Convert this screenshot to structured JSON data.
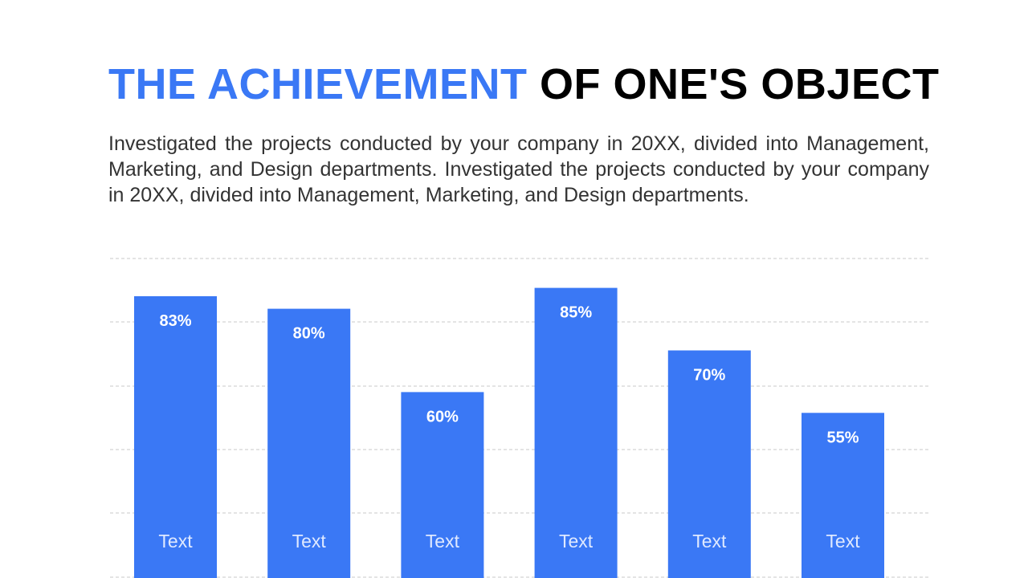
{
  "title": {
    "accent": "THE ACHIEVEMENT",
    "rest": "OF ONE'S OBJECT"
  },
  "description": "Investigated the projects conducted by your company in 20XX, divided into Management, Marketing, and Design departments. Investigated the projects conducted by your company in 20XX, divided into Management, Marketing, and Design departments.",
  "colors": {
    "accent": "#3a78f5",
    "bar": "#3a78f5",
    "gridline": "#c8c8c8",
    "title_rest": "#000000"
  },
  "chart_data": {
    "type": "bar",
    "categories": [
      "Text",
      "Text",
      "Text",
      "Text",
      "Text",
      "Text"
    ],
    "values": [
      83,
      80,
      60,
      85,
      70,
      55
    ],
    "value_labels": [
      "83%",
      "80%",
      "60%",
      "85%",
      "70%",
      "55%"
    ],
    "title": "",
    "xlabel": "",
    "ylabel": "",
    "grid": true,
    "legend": "none"
  }
}
